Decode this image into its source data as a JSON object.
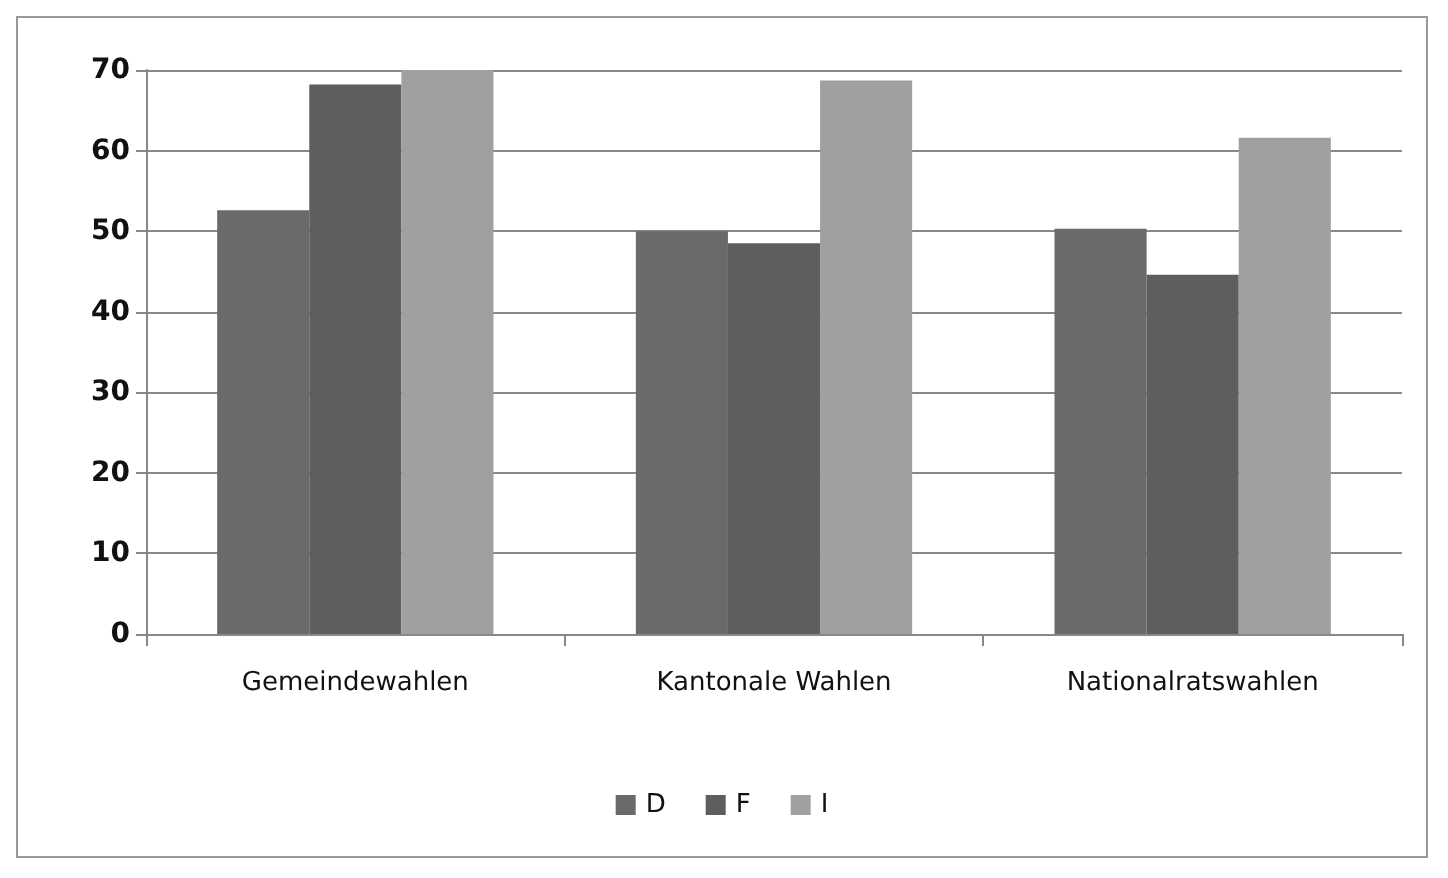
{
  "chart_data": {
    "type": "bar",
    "categories": [
      "Gemeindewahlen",
      "Kantonale Wahlen",
      "Nationalratswahlen"
    ],
    "series": [
      {
        "name": "D",
        "color": "#6a6a6a",
        "values": [
          52.6,
          50.0,
          50.3
        ]
      },
      {
        "name": "F",
        "color": "#5e5e5e",
        "values": [
          68.2,
          48.5,
          44.6
        ]
      },
      {
        "name": "I",
        "color": "#a0a0a0",
        "values": [
          70,
          68.7,
          61.6
        ]
      }
    ],
    "ylim": [
      0,
      70
    ],
    "yticks": [
      0,
      10,
      20,
      30,
      40,
      50,
      60,
      70
    ],
    "grid": "y",
    "legend": "bottom"
  }
}
